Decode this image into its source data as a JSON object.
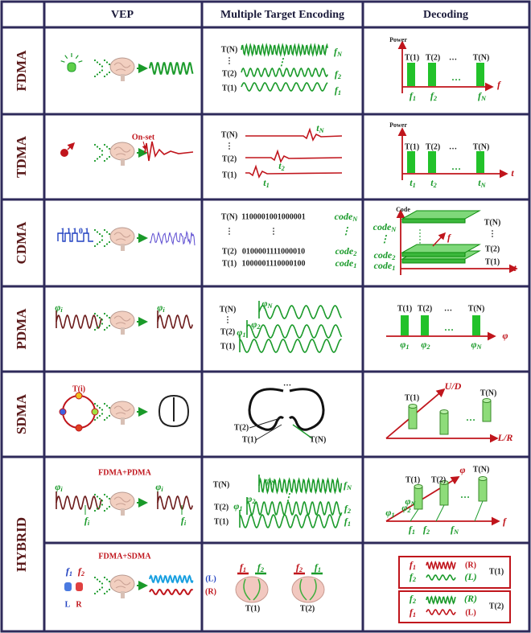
{
  "header": [
    "VEP",
    "Multiple Target Encoding",
    "Decoding"
  ],
  "rows": [
    {
      "label": "FDMA",
      "parts": [
        {
          "encoding": [
            "T(N)",
            "⋮",
            "T(2)",
            "T(1)",
            {
              "main": "f",
              "sub": "N"
            },
            "⋮",
            {
              "main": "f",
              "sub": "2"
            },
            {
              "main": "f",
              "sub": "1"
            }
          ],
          "decoding": [
            "Power",
            "T(1)",
            "T(2)",
            "…",
            "T(N)",
            "…",
            {
              "main": "f",
              "sub": "1"
            },
            {
              "main": "f",
              "sub": "2"
            },
            {
              "main": "f",
              "sub": "N"
            },
            "f"
          ]
        }
      ]
    },
    {
      "label": "TDMA",
      "parts": [
        {
          "vep": [
            "On-set"
          ],
          "encoding": [
            "T(N)",
            "⋮",
            "T(2)",
            "T(1)",
            {
              "main": "t",
              "sub": "N"
            },
            {
              "main": "t",
              "sub": "2"
            },
            {
              "main": "t",
              "sub": "1"
            }
          ],
          "decoding": [
            "Power",
            "T(1)",
            "T(2)",
            "…",
            "T(N)",
            "…",
            {
              "main": "t",
              "sub": "1"
            },
            {
              "main": "t",
              "sub": "2"
            },
            {
              "main": "t",
              "sub": "N"
            },
            "t"
          ]
        }
      ]
    },
    {
      "label": "CDMA",
      "parts": [
        {
          "vep": [
            "1 1 1 0 1"
          ],
          "encoding": [
            "T(N)",
            "1100001001000001",
            {
              "main": "code",
              "sub": "N"
            },
            "⋮",
            "⋮",
            "⋮",
            "T(2)",
            "0100001111000010",
            {
              "main": "code",
              "sub": "2"
            },
            "T(1)",
            "1000001110000100",
            {
              "main": "code",
              "sub": "1"
            }
          ],
          "decoding": [
            "Code",
            {
              "main": "code",
              "sub": "N"
            },
            "⋮",
            {
              "main": "code",
              "sub": "2"
            },
            {
              "main": "code",
              "sub": "1"
            },
            "T(N)",
            "⋮",
            "T(2)",
            "T(1)",
            "f",
            "t"
          ]
        }
      ]
    },
    {
      "label": "PDMA",
      "parts": [
        {
          "vep": [
            {
              "main": "φ",
              "sub": "i"
            },
            {
              "main": "φ",
              "sub": "i"
            }
          ],
          "encoding": [
            "T(N)",
            "⋮",
            "T(2)",
            "T(1)",
            {
              "main": "φ",
              "sub": "N"
            },
            {
              "main": "φ",
              "sub": "2"
            },
            {
              "main": "φ",
              "sub": "1"
            }
          ],
          "decoding": [
            "T(1)",
            "T(2)",
            "…",
            "T(N)",
            "…",
            {
              "main": "φ",
              "sub": "1"
            },
            {
              "main": "φ",
              "sub": "2"
            },
            {
              "main": "φ",
              "sub": "N"
            },
            "φ"
          ]
        }
      ]
    },
    {
      "label": "SDMA",
      "parts": [
        {
          "vep": [
            "T(i)"
          ],
          "encoding": [
            "…",
            "T(2)",
            "T(1)",
            "T(N)"
          ],
          "decoding": [
            "U/D",
            "L/R",
            "T(1)",
            "T(N)",
            "…"
          ]
        }
      ]
    },
    {
      "label": "HYBRID",
      "parts": [
        {
          "vep": [
            "FDMA+PDMA",
            {
              "main": "φ",
              "sub": "i"
            },
            {
              "main": "f",
              "sub": "i"
            },
            {
              "main": "φ",
              "sub": "i"
            },
            {
              "main": "f",
              "sub": "i"
            }
          ],
          "encoding": [
            "T(N)",
            "T(2)",
            "T(1)",
            "⋮",
            {
              "main": "φ",
              "sub": "N"
            },
            {
              "main": "φ",
              "sub": "2"
            },
            {
              "main": "φ",
              "sub": "1"
            },
            {
              "main": "f",
              "sub": "N"
            },
            {
              "main": "f",
              "sub": "2"
            },
            {
              "main": "f",
              "sub": "1"
            }
          ],
          "decoding": [
            "T(1)",
            "T(2)",
            "T(N)",
            "φ",
            "…",
            {
              "main": "φ",
              "sub": "N"
            },
            {
              "main": "φ",
              "sub": "2"
            },
            {
              "main": "φ",
              "sub": "1"
            },
            {
              "main": "f",
              "sub": "1"
            },
            {
              "main": "f",
              "sub": "2"
            },
            {
              "main": "f",
              "sub": "N"
            },
            "f"
          ]
        },
        {
          "vep": [
            "FDMA+SDMA",
            {
              "main": "f",
              "sub": "1"
            },
            {
              "main": "f",
              "sub": "2"
            },
            "L",
            "R",
            "(L)",
            "(R)"
          ],
          "encoding": [
            {
              "main": "f",
              "sub": "1"
            },
            {
              "main": "f",
              "sub": "2"
            },
            "T(1)",
            {
              "main": "f",
              "sub": "2"
            },
            {
              "main": "f",
              "sub": "1"
            },
            "T(2)"
          ],
          "decoding": [
            {
              "main": "f",
              "sub": "1"
            },
            "(R)",
            {
              "main": "f",
              "sub": "2"
            },
            "(L)",
            "T(1)",
            {
              "main": "f",
              "sub": "2"
            },
            "(R)",
            {
              "main": "f",
              "sub": "1"
            },
            "(L)",
            "T(2)"
          ]
        }
      ]
    }
  ]
}
